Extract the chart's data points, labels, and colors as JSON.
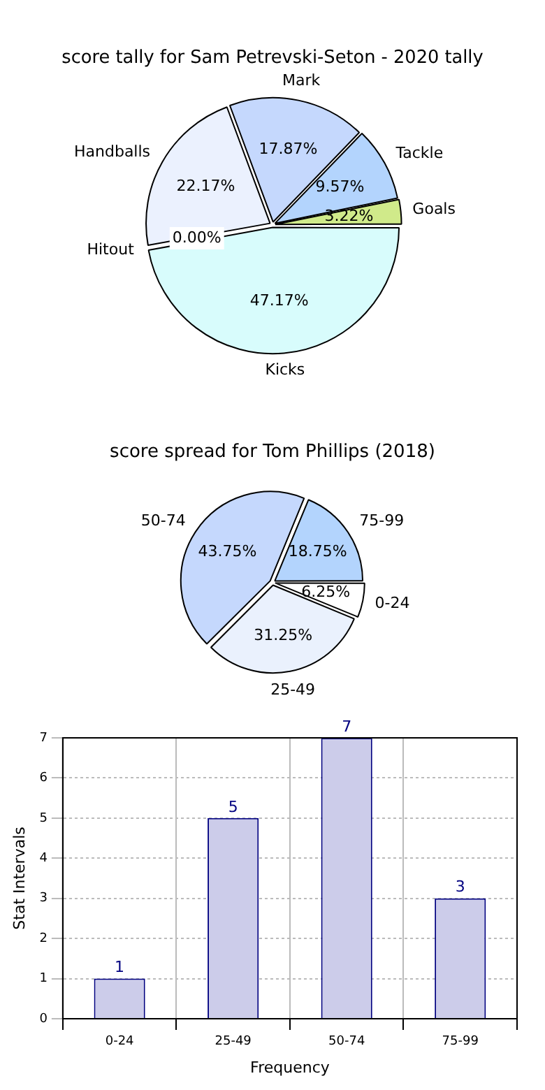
{
  "chart_data": [
    {
      "type": "pie",
      "title": "score tally for Sam Petrevski-Seton - 2020 tally",
      "categories": [
        "Kicks",
        "Hitout",
        "Handballs",
        "Mark",
        "Tackle",
        "Goals"
      ],
      "values": [
        47.17,
        0,
        22.17,
        17.87,
        9.57,
        3.22
      ],
      "colors": [
        "#d8fcfc",
        "#c0c0c0",
        "#ebf1fe",
        "#c5d8fd",
        "#b3d4fd",
        "#d0ea8a"
      ],
      "value_labels": [
        "47.17%",
        "0.00%",
        "22.17%",
        "17.87%",
        "9.57%",
        "3.22%"
      ]
    },
    {
      "type": "pie",
      "title": "score spread for Tom Phillips (2018)",
      "categories": [
        "0-24",
        "25-49",
        "50-74",
        "75-99"
      ],
      "values": [
        6.25,
        31.25,
        43.75,
        18.75
      ],
      "colors": [
        "#ffffff",
        "#eaf1fd",
        "#c5d8fd",
        "#b3d4fd"
      ],
      "value_labels": [
        "6.25%",
        "31.25%",
        "43.75%",
        "18.75%"
      ]
    },
    {
      "type": "bar",
      "categories": [
        "0-24",
        "25-49",
        "50-74",
        "75-99"
      ],
      "values": [
        1,
        5,
        7,
        3
      ],
      "color": "#ccccea",
      "xlabel": "Frequency",
      "ylabel": "Stat Intervals",
      "ylim": [
        0,
        7
      ],
      "yticks": [
        0,
        1,
        2,
        3,
        4,
        5,
        6,
        7
      ],
      "grid": true,
      "data_labels": true
    }
  ]
}
